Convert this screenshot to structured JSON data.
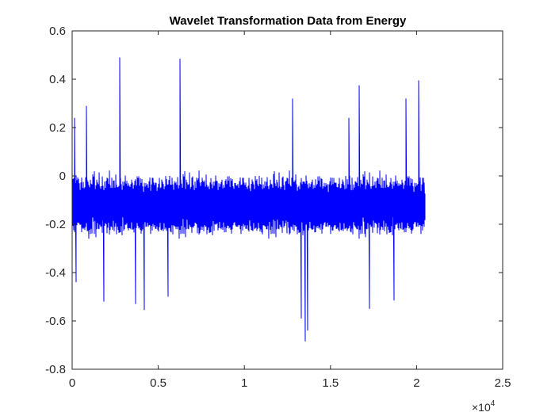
{
  "chart_data": {
    "type": "line",
    "title": "Wavelet Transformation Data from Energy",
    "xlabel": "",
    "ylabel": "",
    "xlim": [
      0,
      25000
    ],
    "ylim": [
      -0.8,
      0.6
    ],
    "x_ticks": [
      0,
      5000,
      10000,
      15000,
      20000,
      25000
    ],
    "x_tick_labels": [
      "0",
      "0.5",
      "1",
      "1.5",
      "2",
      "2.5"
    ],
    "x_exponent_base": "×10",
    "x_exponent_power": "4",
    "y_ticks": [
      -0.8,
      -0.6,
      -0.4,
      -0.2,
      0,
      0.2,
      0.4,
      0.6
    ],
    "y_tick_labels": [
      "-0.8",
      "-0.6",
      "-0.4",
      "-0.2",
      "0",
      "0.2",
      "0.4",
      "0.6"
    ],
    "grid": false,
    "series": [
      {
        "color": "#0000ff",
        "n_points": 20500,
        "x_range": [
          1,
          20500
        ],
        "baseline": -0.12,
        "typical_upper": 0.13,
        "typical_lower": -0.37,
        "peaks": [
          {
            "x": 2800,
            "y": 0.49
          },
          {
            "x": 6300,
            "y": 0.485
          },
          {
            "x": 20150,
            "y": 0.395
          },
          {
            "x": 16700,
            "y": 0.375
          },
          {
            "x": 12800,
            "y": 0.32
          },
          {
            "x": 19400,
            "y": 0.32
          },
          {
            "x": 850,
            "y": 0.29
          },
          {
            "x": 16100,
            "y": 0.24
          },
          {
            "x": 150,
            "y": 0.24
          },
          {
            "x": 13550,
            "y": -0.685
          },
          {
            "x": 13700,
            "y": -0.64
          },
          {
            "x": 13350,
            "y": -0.59
          },
          {
            "x": 4200,
            "y": -0.555
          },
          {
            "x": 17300,
            "y": -0.55
          },
          {
            "x": 3700,
            "y": -0.53
          },
          {
            "x": 1850,
            "y": -0.52
          },
          {
            "x": 18700,
            "y": -0.515
          },
          {
            "x": 5600,
            "y": -0.5
          },
          {
            "x": 250,
            "y": -0.44
          }
        ]
      }
    ]
  }
}
